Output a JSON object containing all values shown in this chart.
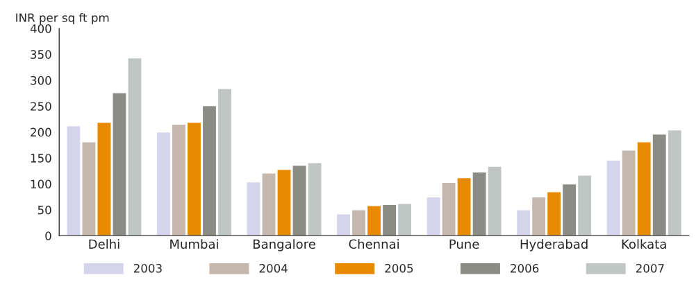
{
  "chart_data": {
    "type": "bar",
    "ylabel": "INR per sq ft pm",
    "categories": [
      "Delhi",
      "Mumbai",
      "Bangalore",
      "Chennai",
      "Pune",
      "Hyderabad",
      "Kolkata"
    ],
    "series": [
      {
        "name": "2003",
        "color": "#d4d4ec",
        "values": [
          212,
          200,
          104,
          42,
          75,
          50,
          146
        ]
      },
      {
        "name": "2004",
        "color": "#c4b7ad",
        "values": [
          181,
          215,
          121,
          50,
          103,
          75,
          165
        ]
      },
      {
        "name": "2005",
        "color": "#e88a00",
        "values": [
          219,
          219,
          128,
          58,
          112,
          85,
          181
        ]
      },
      {
        "name": "2006",
        "color": "#8c8c87",
        "values": [
          276,
          251,
          136,
          60,
          123,
          100,
          196
        ]
      },
      {
        "name": "2007",
        "color": "#c0c6c4",
        "values": [
          343,
          284,
          141,
          62,
          134,
          117,
          204
        ]
      }
    ],
    "ylim": [
      0,
      400
    ],
    "yticks": [
      0,
      50,
      100,
      150,
      200,
      250,
      300,
      350,
      400
    ],
    "grid": false,
    "legend": "bottom"
  }
}
